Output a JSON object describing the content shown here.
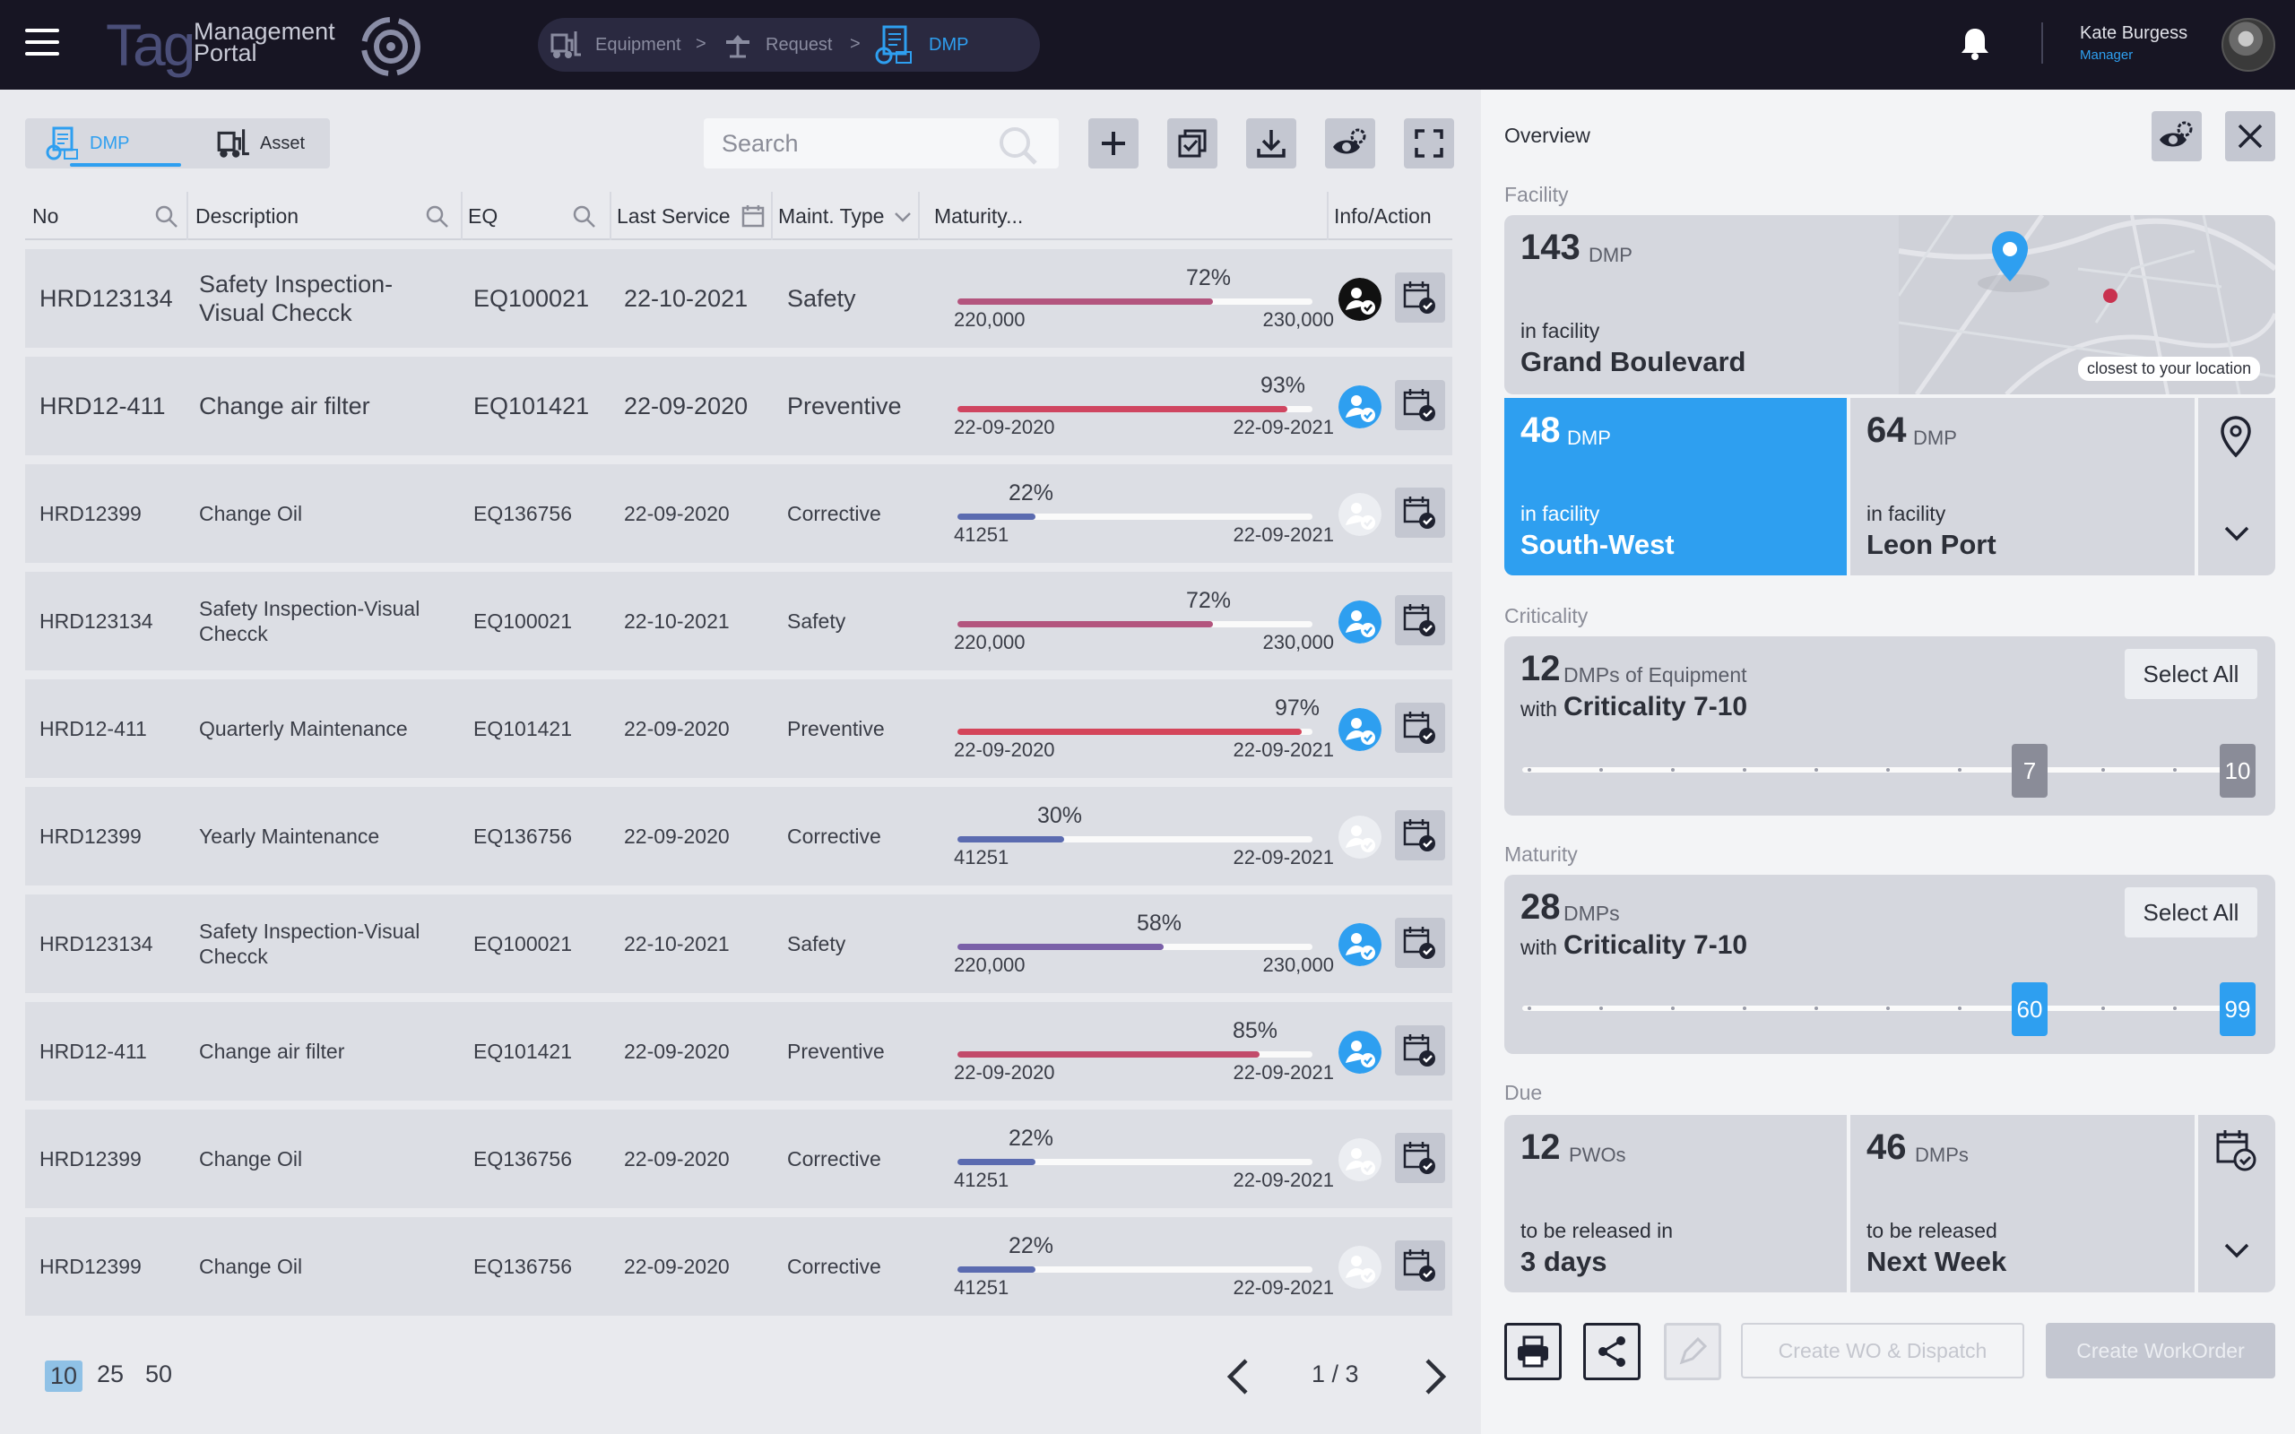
{
  "header": {
    "logo_mark": "Tag",
    "logo_line1": "Management",
    "logo_line2": "Portal",
    "breadcrumbs": [
      {
        "label": "Equipment",
        "icon": "forklift-icon"
      },
      {
        "label": "Request",
        "icon": "construction-icon"
      },
      {
        "label": "DMP",
        "icon": "dmp-building-icon",
        "active": true
      }
    ],
    "user": {
      "name": "Kate Burgess",
      "role": "Manager"
    }
  },
  "left": {
    "tabs": [
      {
        "label": "DMP",
        "active": true
      },
      {
        "label": "Asset",
        "active": false
      }
    ],
    "search": {
      "placeholder": "Search",
      "value": ""
    },
    "columns": [
      "No",
      "Description",
      "EQ",
      "Last Service",
      "Maint. Type",
      "Maturity...",
      "Info/Action"
    ],
    "rows": [
      {
        "no": "HRD123134",
        "desc": [
          "Safety Inspection-",
          "Visual Checck"
        ],
        "eq": "EQ100021",
        "last": "22-10-2021",
        "type": "Safety",
        "pct": "72%",
        "pct_value": 0.72,
        "color": "#b3557e",
        "lo": "220,000",
        "hi": "230,000",
        "large": true,
        "info": "dark"
      },
      {
        "no": "HRD12-411",
        "desc": [
          "Change air filter"
        ],
        "eq": "EQ101421",
        "last": "22-09-2020",
        "type": "Preventive",
        "pct": "93%",
        "pct_value": 0.93,
        "color": "#cf4560",
        "lo": "22-09-2020",
        "hi": "22-09-2021",
        "large": true,
        "info": "blue"
      },
      {
        "no": "HRD12399",
        "desc": [
          "Change Oil"
        ],
        "eq": "EQ136756",
        "last": "22-09-2020",
        "type": "Corrective",
        "pct": "22%",
        "pct_value": 0.22,
        "color": "#5b6bb0",
        "lo": "41251",
        "hi": "22-09-2021",
        "large": false,
        "info": "light"
      },
      {
        "no": "HRD123134",
        "desc": [
          "Safety Inspection-Visual",
          "Checck"
        ],
        "eq": "EQ100021",
        "last": "22-10-2021",
        "type": "Safety",
        "pct": "72%",
        "pct_value": 0.72,
        "color": "#b3557e",
        "lo": "220,000",
        "hi": "230,000",
        "large": false,
        "info": "blue"
      },
      {
        "no": "HRD12-411",
        "desc": [
          "Quarterly Maintenance"
        ],
        "eq": "EQ101421",
        "last": "22-09-2020",
        "type": "Preventive",
        "pct": "97%",
        "pct_value": 0.97,
        "color": "#d4455a",
        "lo": "22-09-2020",
        "hi": "22-09-2021",
        "large": false,
        "info": "blue"
      },
      {
        "no": "HRD12399",
        "desc": [
          "Yearly Maintenance"
        ],
        "eq": "EQ136756",
        "last": "22-09-2020",
        "type": "Corrective",
        "pct": "30%",
        "pct_value": 0.3,
        "color": "#5b6bb0",
        "lo": "41251",
        "hi": "22-09-2021",
        "large": false,
        "info": "light"
      },
      {
        "no": "HRD123134",
        "desc": [
          "Safety Inspection-Visual",
          "Checck"
        ],
        "eq": "EQ100021",
        "last": "22-10-2021",
        "type": "Safety",
        "pct": "58%",
        "pct_value": 0.58,
        "color": "#7a60a8",
        "lo": "220,000",
        "hi": "230,000",
        "large": false,
        "info": "blue"
      },
      {
        "no": "HRD12-411",
        "desc": [
          "Change air filter"
        ],
        "eq": "EQ101421",
        "last": "22-09-2020",
        "type": "Preventive",
        "pct": "85%",
        "pct_value": 0.85,
        "color": "#c24a6a",
        "lo": "22-09-2020",
        "hi": "22-09-2021",
        "large": false,
        "info": "blue"
      },
      {
        "no": "HRD12399",
        "desc": [
          "Change Oil"
        ],
        "eq": "EQ136756",
        "last": "22-09-2020",
        "type": "Corrective",
        "pct": "22%",
        "pct_value": 0.22,
        "color": "#5b6bb0",
        "lo": "41251",
        "hi": "22-09-2021",
        "large": false,
        "info": "light"
      },
      {
        "no": "HRD12399",
        "desc": [
          "Change Oil"
        ],
        "eq": "EQ136756",
        "last": "22-09-2020",
        "type": "Corrective",
        "pct": "22%",
        "pct_value": 0.22,
        "color": "#5b6bb0",
        "lo": "41251",
        "hi": "22-09-2021",
        "large": false,
        "info": "light"
      }
    ],
    "page_sizes": [
      "10",
      "25",
      "50"
    ],
    "selected_page_size": "10",
    "page_indicator": "1 / 3"
  },
  "overview": {
    "title": "Overview",
    "facility_label": "Facility",
    "facility_main": {
      "count": "143",
      "unit": "DMP",
      "sub": "in facility",
      "name": "Grand Boulevard",
      "badge": "closest to your location"
    },
    "facility_sw": {
      "count": "48",
      "unit": "DMP",
      "sub": "in facility",
      "name": "South-West"
    },
    "facility_lp": {
      "count": "64",
      "unit": "DMP",
      "sub": "in facility",
      "name": "Leon Port"
    },
    "criticality_label": "Criticality",
    "criticality": {
      "count": "12",
      "unit": "DMPs of Equipment",
      "with": "with",
      "range": "Criticality 7-10",
      "select_all": "Select All",
      "min": "7",
      "max": "10"
    },
    "maturity_label": "Maturity",
    "maturity": {
      "count": "28",
      "unit": "DMPs",
      "with": "with",
      "range": "Criticality 7-10",
      "select_all": "Select All",
      "min": "60",
      "max": "99"
    },
    "due_label": "Due",
    "due_pwo": {
      "count": "12",
      "unit": "PWOs",
      "sub": "to be released in",
      "name": "3 days"
    },
    "due_dmp": {
      "count": "46",
      "unit": "DMPs",
      "sub": "to be released",
      "name": "Next  Week"
    },
    "create_wo_dispatch": "Create WO & Dispatch",
    "create_workorder": "Create WorkOrder"
  },
  "colors": {
    "accent": "#2e9ff0",
    "topbar": "#171523",
    "row": "#dcdee4"
  }
}
